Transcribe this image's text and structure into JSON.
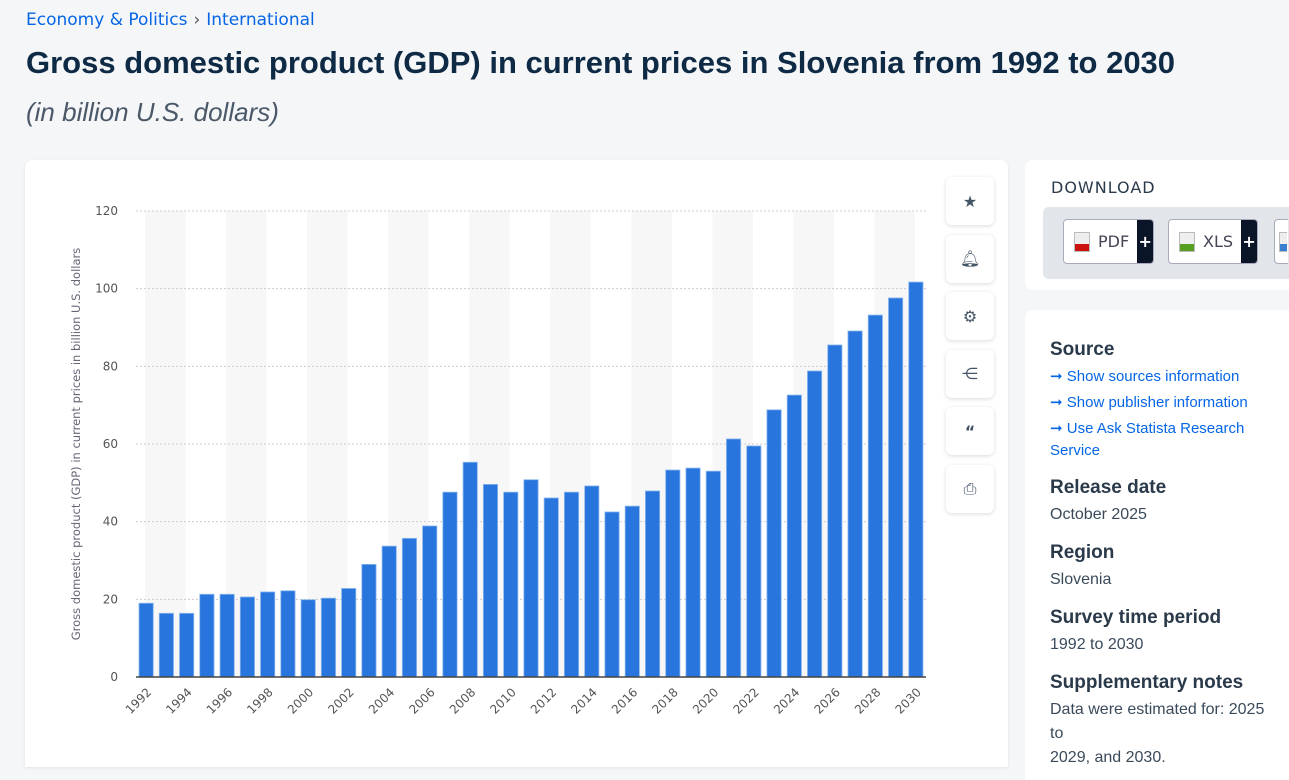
{
  "breadcrumb": [
    "Economy & Politics",
    "International"
  ],
  "title": "Gross domestic product (GDP) in current prices in Slovenia from 1992 to 2030",
  "subtitle": "(in billion U.S. dollars)",
  "tools": [
    "star-icon",
    "bell-icon",
    "gear-icon",
    "share-icon",
    "quote-icon",
    "print-icon"
  ],
  "download": {
    "heading": "DOWNLOAD",
    "buttons": [
      {
        "label": "PDF",
        "color": "#cc1111"
      },
      {
        "label": "XLS",
        "color": "#55a020"
      }
    ],
    "plus": "+"
  },
  "info": {
    "source_heading": "Source",
    "links": [
      "Show sources information",
      "Show publisher information",
      "Use Ask Statista Research Service"
    ],
    "release_heading": "Release date",
    "release": "October 2025",
    "region_heading": "Region",
    "region": "Slovenia",
    "period_heading": "Survey time period",
    "period": "1992 to 2030",
    "notes_heading": "Supplementary notes",
    "notes": [
      "Data were estimated for: 2025 to",
      "2029, and 2030."
    ]
  },
  "chart_data": {
    "type": "bar",
    "ylabel": "Gross domestic product (GDP) in current prices in billion U.S. dollars",
    "ylim": [
      0,
      120
    ],
    "yticks": [
      0,
      20,
      40,
      60,
      80,
      100,
      120
    ],
    "grid": true,
    "bar_color": "#2876dd",
    "categories": [
      1992,
      1993,
      1994,
      1995,
      1996,
      1997,
      1998,
      1999,
      2000,
      2001,
      2002,
      2003,
      2004,
      2005,
      2006,
      2007,
      2008,
      2009,
      2010,
      2011,
      2012,
      2013,
      2014,
      2015,
      2016,
      2017,
      2018,
      2019,
      2020,
      2021,
      2022,
      2023,
      2024,
      2025,
      2026,
      2027,
      2028,
      2029,
      2030
    ],
    "xtick_labels": [
      "1992",
      "1994",
      "1996",
      "1998",
      "2000",
      "2002",
      "2004",
      "2006",
      "2008",
      "2010",
      "2012",
      "2014",
      "2016",
      "2018",
      "2020",
      "2022",
      "2024",
      "2026",
      "2028",
      "2030"
    ],
    "values": [
      19.0,
      16.4,
      16.4,
      21.3,
      21.3,
      20.6,
      21.9,
      22.2,
      19.9,
      20.3,
      22.8,
      29.0,
      33.7,
      35.7,
      38.9,
      47.6,
      55.3,
      49.6,
      47.6,
      50.8,
      46.1,
      47.6,
      49.2,
      42.5,
      44.0,
      47.9,
      53.3,
      53.8,
      53.0,
      61.3,
      59.5,
      68.8,
      72.6,
      78.8,
      85.5,
      89.1,
      93.2,
      97.6,
      101.7
    ]
  }
}
